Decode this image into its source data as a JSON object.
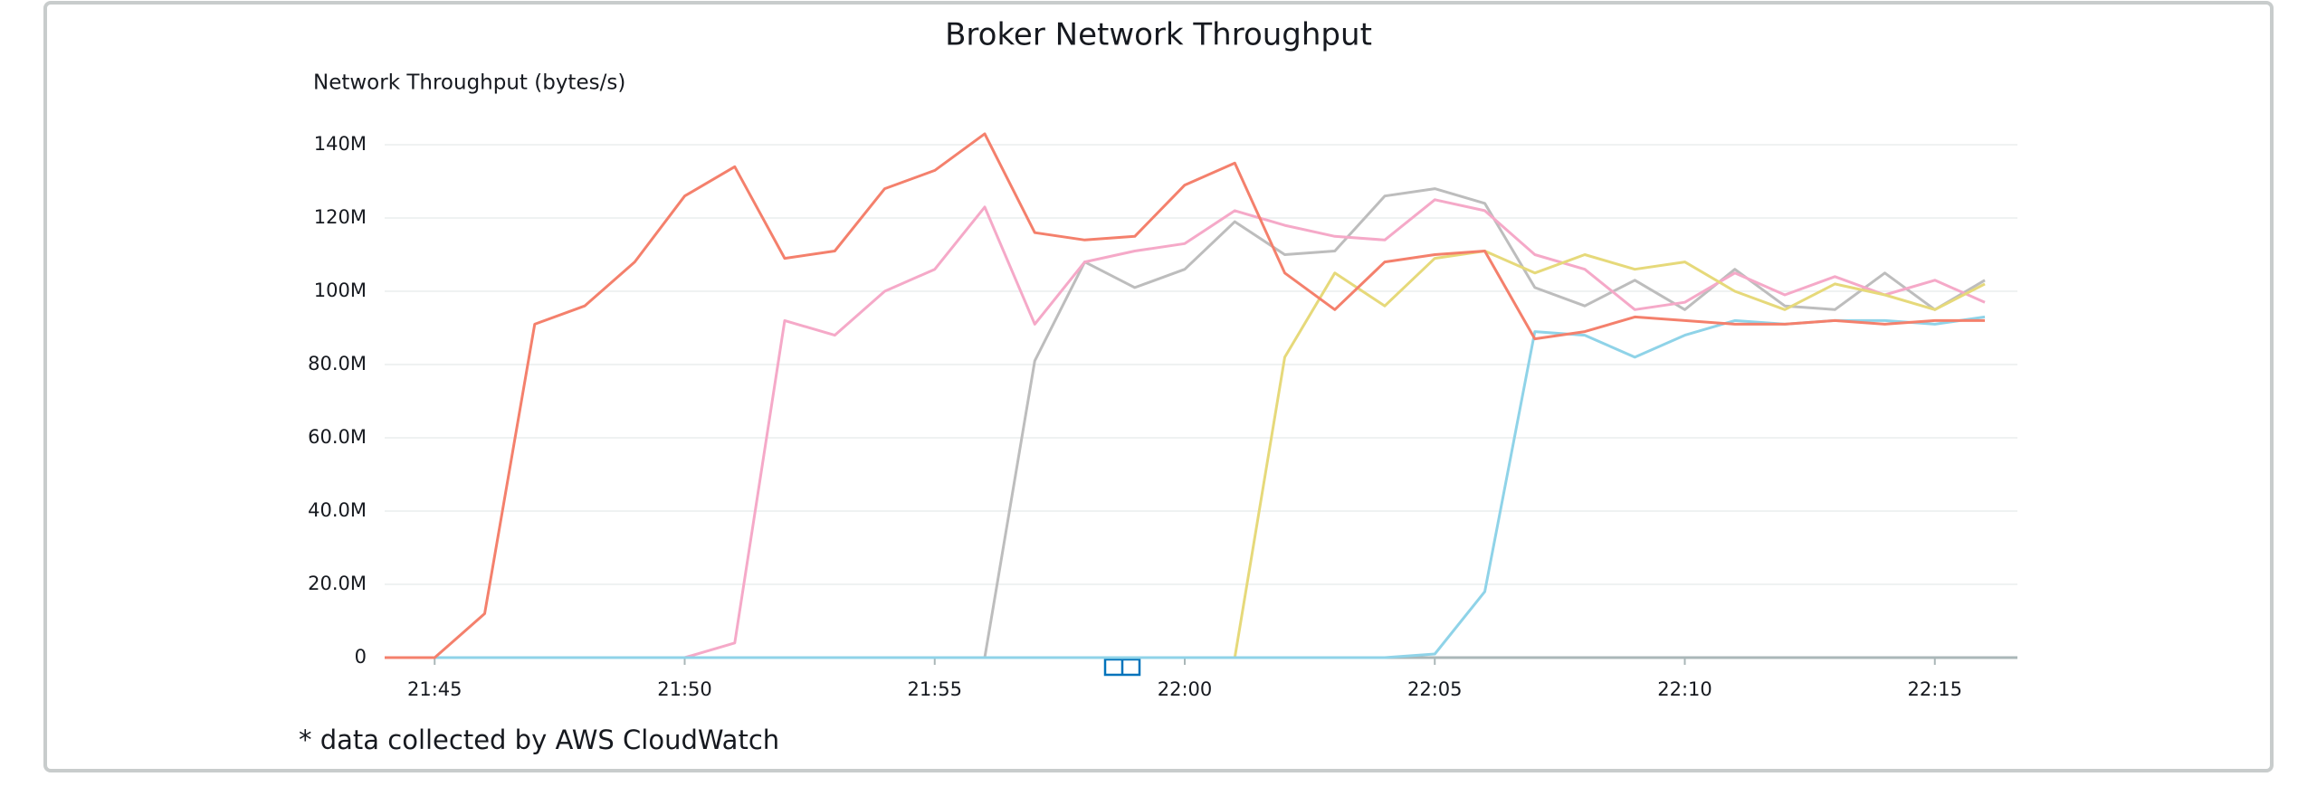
{
  "chart_data": {
    "type": "line",
    "title": "Broker Network Throughput",
    "y_label": "Network Throughput (bytes/s)",
    "footnote": "* data collected by AWS CloudWatch",
    "x": [
      "21:44",
      "21:45",
      "21:46",
      "21:47",
      "21:48",
      "21:49",
      "21:50",
      "21:51",
      "21:52",
      "21:53",
      "21:54",
      "21:55",
      "21:56",
      "21:57",
      "21:58",
      "21:59",
      "22:00",
      "22:01",
      "22:02",
      "22:03",
      "22:04",
      "22:05",
      "22:06",
      "22:07",
      "22:08",
      "22:09",
      "22:10",
      "22:11",
      "22:12",
      "22:13",
      "22:14",
      "22:15",
      "22:16"
    ],
    "xlim": [
      "21:44",
      "22:16"
    ],
    "xticks": [
      "21:45",
      "21:50",
      "21:55",
      "22:00",
      "22:05",
      "22:10",
      "22:15"
    ],
    "ylim": [
      0,
      140000000
    ],
    "yticks": [
      0,
      {
        "value": 20000000,
        "label": "20.0M"
      },
      {
        "value": 40000000,
        "label": "40.0M"
      },
      {
        "value": 60000000,
        "label": "60.0M"
      },
      {
        "value": 80000000,
        "label": "80.0M"
      },
      {
        "value": 100000000,
        "label": "100M"
      },
      {
        "value": 120000000,
        "label": "120M"
      },
      {
        "value": 140000000,
        "label": "140M"
      }
    ],
    "grid": true,
    "series": [
      {
        "color": "#bdbdbd",
        "values": [
          0,
          0,
          0,
          0,
          0,
          0,
          0,
          0,
          0,
          0,
          0,
          0,
          0,
          81000000,
          108000000,
          101000000,
          106000000,
          119000000,
          110000000,
          111000000,
          126000000,
          128000000,
          124000000,
          101000000,
          96000000,
          103000000,
          95000000,
          106000000,
          96000000,
          95000000,
          105000000,
          95000000,
          103000000
        ]
      },
      {
        "color": "#f5a9c8",
        "values": [
          0,
          0,
          0,
          0,
          0,
          0,
          0,
          4000000,
          92000000,
          88000000,
          100000000,
          106000000,
          123000000,
          91000000,
          108000000,
          111000000,
          113000000,
          122000000,
          118000000,
          115000000,
          114000000,
          125000000,
          122000000,
          110000000,
          106000000,
          95000000,
          97000000,
          105000000,
          99000000,
          104000000,
          99000000,
          103000000,
          97000000
        ]
      },
      {
        "color": "#e6d97a",
        "values": [
          0,
          0,
          0,
          0,
          0,
          0,
          0,
          0,
          0,
          0,
          0,
          0,
          0,
          0,
          0,
          0,
          0,
          0,
          82000000,
          105000000,
          96000000,
          109000000,
          111000000,
          105000000,
          110000000,
          106000000,
          108000000,
          100000000,
          95000000,
          102000000,
          99000000,
          95000000,
          102000000
        ]
      },
      {
        "color": "#8fd3e8",
        "values": [
          0,
          0,
          0,
          0,
          0,
          0,
          0,
          0,
          0,
          0,
          0,
          0,
          0,
          0,
          0,
          0,
          0,
          0,
          0,
          0,
          0,
          1000000,
          18000000,
          89000000,
          88000000,
          82000000,
          88000000,
          92000000,
          91000000,
          92000000,
          92000000,
          91000000,
          93000000
        ]
      },
      {
        "color": "#f4806c",
        "values": [
          0,
          0,
          12000000,
          91000000,
          96000000,
          108000000,
          126000000,
          134000000,
          109000000,
          111000000,
          128000000,
          133000000,
          143000000,
          116000000,
          114000000,
          115000000,
          129000000,
          135000000,
          105000000,
          95000000,
          108000000,
          110000000,
          111000000,
          87000000,
          89000000,
          93000000,
          92000000,
          91000000,
          91000000,
          92000000,
          91000000,
          92000000,
          92000000
        ]
      }
    ]
  }
}
